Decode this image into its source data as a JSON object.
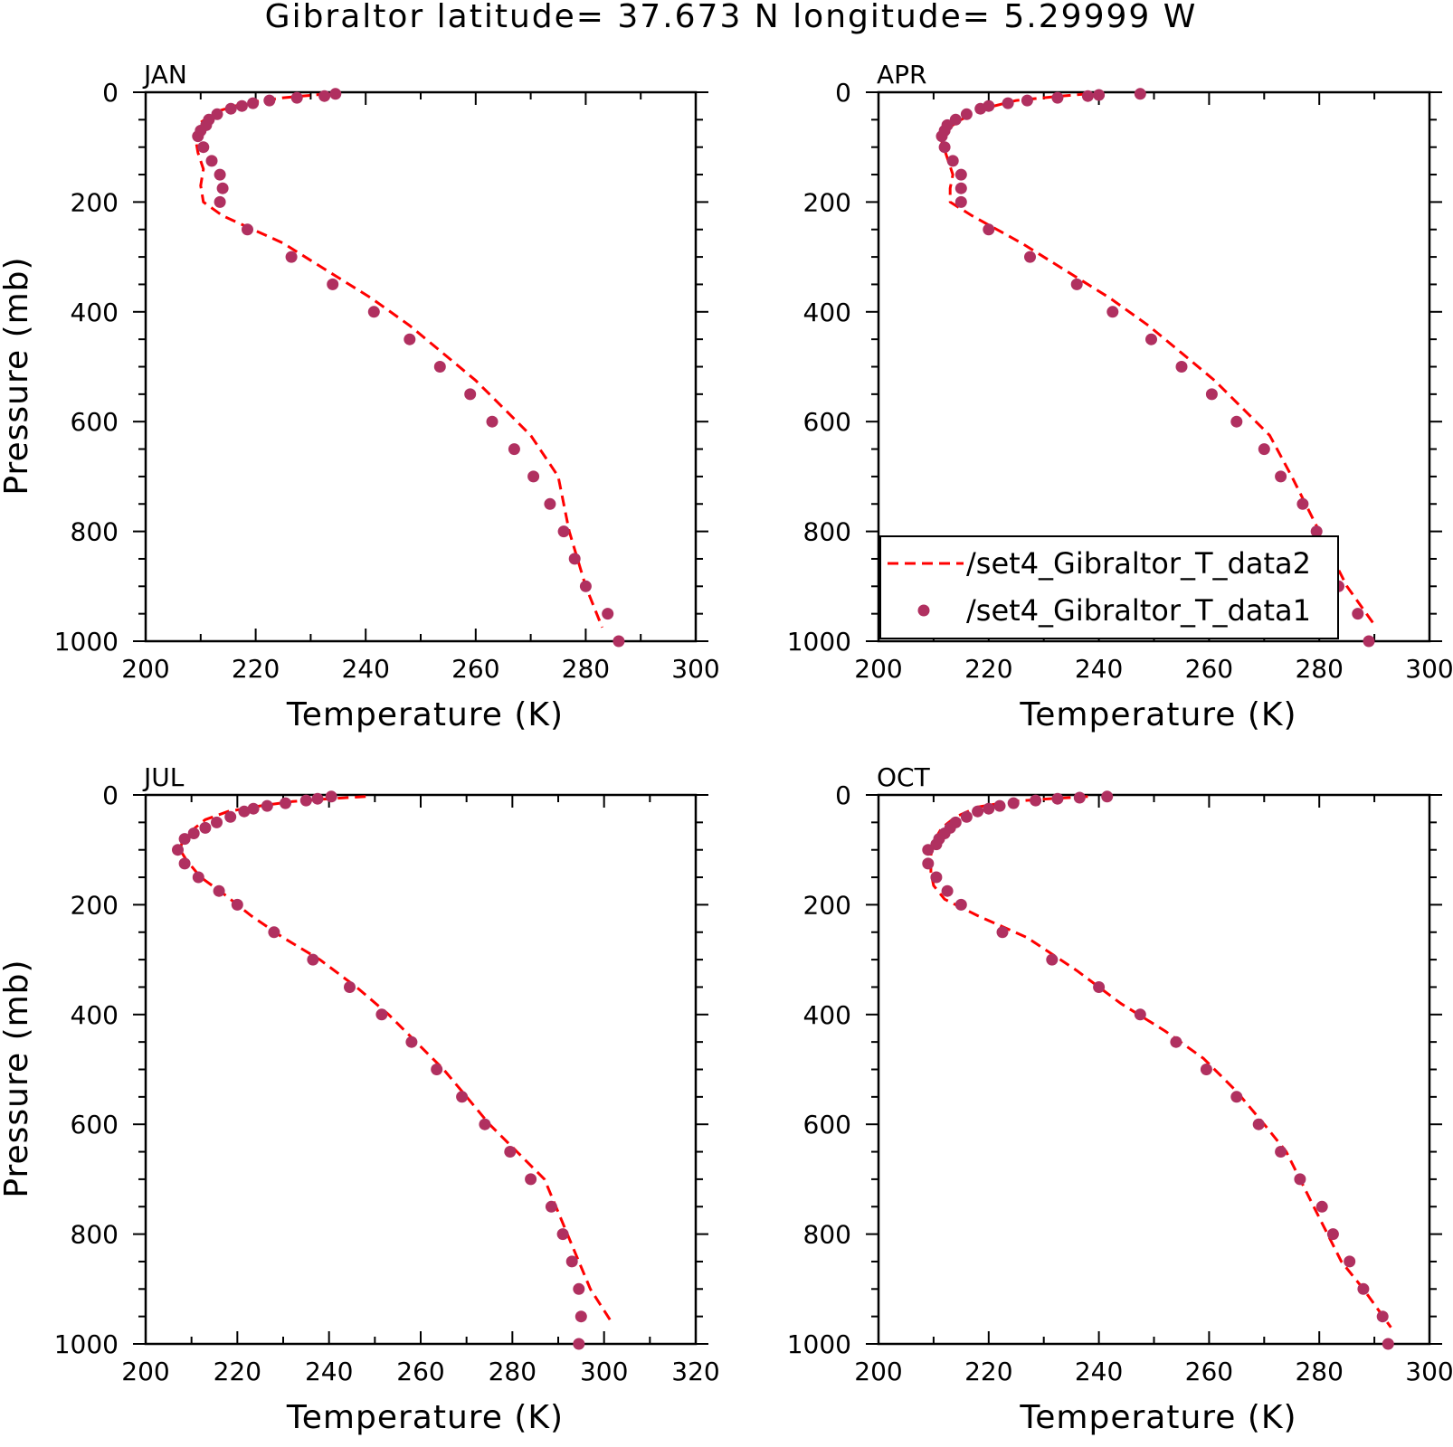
{
  "figure": {
    "title": "Gibraltor  latitude= 37.673 N longitude= 5.29999 W"
  },
  "colors": {
    "model_line": "#ff0000",
    "obs_marker": "#b03060",
    "axis": "#000000"
  },
  "legend": {
    "panel": "APR",
    "entries": [
      {
        "label": "/set4_Gibraltor_T_data2",
        "style": "dashed-line"
      },
      {
        "label": "/set4_Gibraltor_T_data1",
        "style": "dot"
      }
    ]
  },
  "chart_data": [
    {
      "type": "line",
      "panel_label": "JAN",
      "xlabel": "Temperature (K)",
      "ylabel": "Pressure (mb)",
      "xlim": [
        200,
        300
      ],
      "ylim": [
        1000,
        0
      ],
      "xticks": [
        200,
        220,
        240,
        260,
        280,
        300
      ],
      "yticks": [
        0,
        200,
        400,
        600,
        800,
        1000
      ],
      "series": [
        {
          "name": "/set4_Gibraltor_T_data2",
          "style": "dashed-line",
          "x": [
            233,
            225,
            218,
            213,
            210,
            209,
            209.5,
            210.5,
            210,
            210.5,
            214,
            225,
            233,
            241,
            248,
            254,
            260,
            265,
            270,
            275,
            277,
            280,
            283
          ],
          "y": [
            3,
            10,
            20,
            35,
            55,
            80,
            110,
            140,
            170,
            200,
            225,
            275,
            325,
            375,
            425,
            475,
            525,
            575,
            625,
            700,
            800,
            900,
            975
          ]
        },
        {
          "name": "/set4_Gibraltor_T_data1",
          "style": "dot",
          "x": [
            234.5,
            232.5,
            227.5,
            222.5,
            219.5,
            217.5,
            215.5,
            213,
            211.5,
            211,
            210,
            209.5,
            210.5,
            212,
            213.5,
            214,
            213.5,
            218.5,
            226.5,
            234,
            241.5,
            248,
            253.5,
            259,
            263,
            267,
            270.5,
            273.5,
            276,
            278,
            280,
            284,
            286
          ],
          "y": [
            3,
            7,
            10,
            15,
            20,
            25,
            30,
            40,
            50,
            60,
            70,
            80,
            100,
            125,
            150,
            175,
            200,
            250,
            300,
            350,
            400,
            450,
            500,
            550,
            600,
            650,
            700,
            750,
            800,
            850,
            900,
            950,
            1000
          ]
        }
      ]
    },
    {
      "type": "line",
      "panel_label": "APR",
      "xlabel": "Temperature (K)",
      "ylabel": "",
      "xlim": [
        200,
        300
      ],
      "ylim": [
        1000,
        0
      ],
      "xticks": [
        200,
        220,
        240,
        260,
        280,
        300
      ],
      "yticks": [
        0,
        200,
        400,
        600,
        800,
        1000
      ],
      "series": [
        {
          "name": "/set4_Gibraltor_T_data2",
          "style": "dashed-line",
          "x": [
            238,
            232,
            225,
            219,
            215,
            212,
            211.5,
            212.5,
            213.5,
            213,
            213,
            217,
            226,
            234,
            242,
            249,
            255,
            261,
            266,
            271,
            275,
            280,
            285,
            290
          ],
          "y": [
            3,
            8,
            15,
            30,
            50,
            70,
            90,
            120,
            150,
            175,
            200,
            225,
            275,
            325,
            375,
            425,
            475,
            525,
            575,
            625,
            700,
            800,
            900,
            970
          ]
        },
        {
          "name": "/set4_Gibraltor_T_data1",
          "style": "dot",
          "x": [
            247.5,
            240,
            238,
            232.5,
            227,
            223.5,
            220,
            218.5,
            216,
            214,
            212.5,
            212,
            211.5,
            212,
            213.5,
            215,
            215,
            215,
            220,
            227.5,
            236,
            242.5,
            249.5,
            255,
            260.5,
            265,
            270,
            273,
            277,
            279.5,
            281.5,
            283.5,
            287,
            289
          ],
          "y": [
            3,
            5,
            7,
            10,
            15,
            20,
            25,
            30,
            40,
            50,
            60,
            70,
            80,
            100,
            125,
            150,
            175,
            200,
            250,
            300,
            350,
            400,
            450,
            500,
            550,
            600,
            650,
            700,
            750,
            800,
            850,
            900,
            950,
            1000
          ]
        }
      ]
    },
    {
      "type": "line",
      "panel_label": "JUL",
      "xlabel": "Temperature (K)",
      "ylabel": "Pressure (mb)",
      "xlim": [
        200,
        320
      ],
      "ylim": [
        1000,
        0
      ],
      "xticks": [
        200,
        220,
        240,
        260,
        280,
        300,
        320
      ],
      "yticks": [
        0,
        200,
        400,
        600,
        800,
        1000
      ],
      "series": [
        {
          "name": "/set4_Gibraltor_T_data2",
          "style": "dashed-line",
          "x": [
            248,
            240,
            232,
            225,
            218,
            213,
            210,
            208,
            207.5,
            209,
            212,
            217,
            223,
            230,
            238,
            246,
            253,
            259,
            265,
            270,
            275,
            281,
            287,
            292,
            297,
            302
          ],
          "y": [
            3,
            7,
            12,
            20,
            30,
            45,
            65,
            85,
            100,
            120,
            150,
            180,
            220,
            260,
            300,
            350,
            400,
            450,
            500,
            550,
            600,
            650,
            700,
            800,
            900,
            965
          ]
        },
        {
          "name": "/set4_Gibraltor_T_data1",
          "style": "dot",
          "x": [
            240.5,
            237.5,
            235,
            230.5,
            226.5,
            223.5,
            221.5,
            218.5,
            215.5,
            213,
            210.5,
            208.5,
            207,
            208.5,
            211.5,
            216,
            220,
            228,
            236.5,
            244.5,
            251.5,
            258,
            263.5,
            269,
            274,
            279.5,
            284,
            288.5,
            291,
            293,
            294.5,
            295,
            294.5
          ],
          "y": [
            3,
            7,
            10,
            15,
            20,
            25,
            30,
            40,
            50,
            60,
            70,
            80,
            100,
            125,
            150,
            175,
            200,
            250,
            300,
            350,
            400,
            450,
            500,
            550,
            600,
            650,
            700,
            750,
            800,
            850,
            900,
            950,
            1000
          ]
        }
      ]
    },
    {
      "type": "line",
      "panel_label": "OCT",
      "xlabel": "Temperature (K)",
      "ylabel": "",
      "xlim": [
        200,
        300
      ],
      "ylim": [
        1000,
        0
      ],
      "xticks": [
        200,
        220,
        240,
        260,
        280,
        300
      ],
      "yticks": [
        0,
        200,
        400,
        600,
        800,
        1000
      ],
      "series": [
        {
          "name": "/set4_Gibraltor_T_data2",
          "style": "dashed-line",
          "x": [
            238,
            231,
            224,
            218,
            214,
            211.5,
            210,
            209.5,
            209.5,
            210,
            212,
            218,
            227,
            236,
            244,
            252,
            259,
            265,
            270,
            274,
            279,
            284,
            288,
            293
          ],
          "y": [
            3,
            7,
            12,
            22,
            40,
            60,
            85,
            110,
            140,
            165,
            190,
            220,
            260,
            320,
            380,
            430,
            480,
            540,
            600,
            650,
            750,
            850,
            900,
            970
          ]
        },
        {
          "name": "/set4_Gibraltor_T_data1",
          "style": "dot",
          "x": [
            241.5,
            236.5,
            232.5,
            228.5,
            224.5,
            222,
            220,
            218,
            216,
            214,
            213,
            212,
            211,
            210.5,
            209,
            209,
            210.5,
            212.5,
            215,
            222.5,
            231.5,
            240,
            247.5,
            254,
            259.5,
            265,
            269,
            273,
            276.5,
            280.5,
            282.5,
            285.5,
            288,
            291.5,
            292.5
          ],
          "y": [
            3,
            5,
            7,
            10,
            15,
            20,
            25,
            30,
            40,
            50,
            60,
            70,
            80,
            90,
            100,
            125,
            150,
            175,
            200,
            250,
            300,
            350,
            400,
            450,
            500,
            550,
            600,
            650,
            700,
            750,
            800,
            850,
            900,
            950,
            1000
          ]
        }
      ]
    }
  ]
}
